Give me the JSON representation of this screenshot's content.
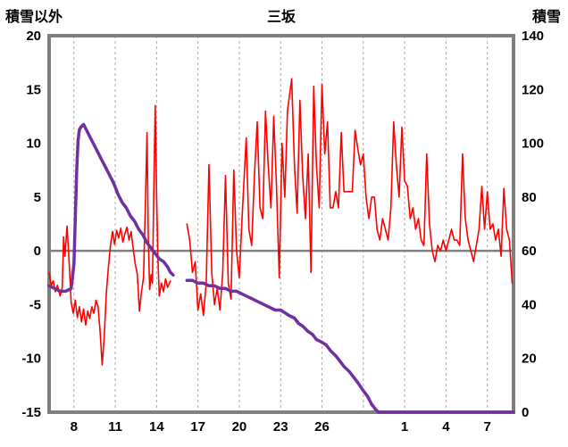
{
  "header": {
    "left_axis_title": "積雪以外",
    "title": "三坂",
    "right_axis_title": "積雪"
  },
  "chart_data": {
    "type": "line",
    "title": "三坂",
    "left_axis": {
      "title": "積雪以外",
      "min": -15,
      "max": 20,
      "ticks": [
        20,
        15,
        10,
        5,
        0,
        -5,
        -10,
        -15
      ]
    },
    "right_axis": {
      "title": "積雪",
      "min": 0,
      "max": 140,
      "ticks": [
        140,
        120,
        100,
        80,
        60,
        40,
        20,
        0
      ]
    },
    "x_domain": [
      6.2,
      39.9
    ],
    "x_ticks": [
      {
        "t": 8,
        "label": "8"
      },
      {
        "t": 11,
        "label": "11"
      },
      {
        "t": 14,
        "label": "14"
      },
      {
        "t": 17,
        "label": "17"
      },
      {
        "t": 20,
        "label": "20"
      },
      {
        "t": 23,
        "label": "23"
      },
      {
        "t": 26,
        "label": "26"
      },
      {
        "t": 29,
        "label": ""
      },
      {
        "t": 32,
        "label": "1"
      },
      {
        "t": 35,
        "label": "4"
      },
      {
        "t": 38,
        "label": "7"
      }
    ],
    "grid": {
      "color": "#ABABAB",
      "dash": "3 3"
    },
    "zero_line_color": "#808080",
    "frame_color": "#808080",
    "background": "#FFFFFF",
    "series": [
      {
        "id": "temperature",
        "name": "積雪以外",
        "axis": "left",
        "color": "#FF0000",
        "width": 1.6,
        "segments": [
          [
            [
              6.2,
              -2.0
            ],
            [
              6.35,
              -3.2
            ],
            [
              6.5,
              -2.8
            ],
            [
              6.65,
              -3.8
            ],
            [
              6.8,
              -3.2
            ],
            [
              7.0,
              -4.2
            ],
            [
              7.15,
              -3.4
            ],
            [
              7.25,
              1.3
            ],
            [
              7.35,
              -0.5
            ],
            [
              7.5,
              2.3
            ],
            [
              7.65,
              -1.0
            ],
            [
              7.8,
              -4.8
            ],
            [
              7.95,
              -5.8
            ],
            [
              8.1,
              -4.6
            ],
            [
              8.25,
              -6.2
            ],
            [
              8.4,
              -5.2
            ],
            [
              8.55,
              -6.6
            ],
            [
              8.7,
              -5.4
            ],
            [
              8.85,
              -6.9
            ],
            [
              9.0,
              -5.6
            ],
            [
              9.15,
              -6.3
            ],
            [
              9.3,
              -5.2
            ],
            [
              9.45,
              -5.8
            ],
            [
              9.6,
              -4.6
            ],
            [
              9.75,
              -5.2
            ],
            [
              9.9,
              -7.5
            ],
            [
              10.05,
              -10.6
            ],
            [
              10.2,
              -8.0
            ],
            [
              10.35,
              -4.0
            ],
            [
              10.5,
              -1.5
            ],
            [
              10.65,
              0.5
            ],
            [
              10.8,
              1.8
            ],
            [
              10.95,
              0.6
            ],
            [
              11.1,
              1.9
            ],
            [
              11.25,
              1.2
            ],
            [
              11.4,
              2.1
            ],
            [
              11.55,
              0.8
            ],
            [
              11.7,
              1.6
            ],
            [
              11.85,
              2.2
            ],
            [
              12.0,
              1.0
            ],
            [
              12.15,
              1.8
            ],
            [
              12.3,
              0.2
            ],
            [
              12.45,
              -1.2
            ],
            [
              12.6,
              -2.2
            ],
            [
              12.75,
              -5.6
            ],
            [
              12.9,
              -3.8
            ],
            [
              13.05,
              -2.5
            ],
            [
              13.2,
              5.0
            ],
            [
              13.3,
              11.0
            ],
            [
              13.4,
              1.0
            ],
            [
              13.5,
              -3.6
            ],
            [
              13.6,
              -2.2
            ],
            [
              13.7,
              -3.0
            ],
            [
              13.8,
              6.0
            ],
            [
              13.9,
              13.5
            ],
            [
              14.0,
              5.0
            ],
            [
              14.1,
              -1.0
            ],
            [
              14.2,
              -4.2
            ],
            [
              14.35,
              -3.0
            ],
            [
              14.5,
              -3.8
            ],
            [
              14.65,
              -2.6
            ],
            [
              14.8,
              -3.4
            ],
            [
              15.0,
              -2.8
            ]
          ],
          [
            [
              16.2,
              2.5
            ],
            [
              16.4,
              1.0
            ],
            [
              16.6,
              -2.0
            ],
            [
              16.8,
              -1.0
            ],
            [
              17.0,
              -5.5
            ],
            [
              17.2,
              -4.0
            ],
            [
              17.4,
              -6.0
            ],
            [
              17.6,
              -3.0
            ],
            [
              17.8,
              8.0
            ],
            [
              18.0,
              -2.0
            ],
            [
              18.2,
              -5.0
            ],
            [
              18.4,
              -3.5
            ],
            [
              18.6,
              -5.5
            ],
            [
              18.8,
              -2.0
            ],
            [
              19.0,
              7.0
            ],
            [
              19.2,
              -3.0
            ],
            [
              19.4,
              -4.5
            ],
            [
              19.6,
              7.5
            ],
            [
              19.8,
              0.0
            ],
            [
              20.0,
              -2.5
            ],
            [
              20.2,
              3.0
            ],
            [
              20.5,
              10.5
            ],
            [
              20.7,
              2.0
            ],
            [
              20.9,
              0.5
            ],
            [
              21.1,
              7.0
            ],
            [
              21.3,
              12.0
            ],
            [
              21.5,
              4.0
            ],
            [
              21.7,
              3.0
            ],
            [
              21.9,
              13.0
            ],
            [
              22.1,
              8.0
            ],
            [
              22.3,
              4.0
            ],
            [
              22.5,
              12.5
            ],
            [
              22.7,
              6.0
            ],
            [
              22.9,
              -2.5
            ],
            [
              23.1,
              10.0
            ],
            [
              23.3,
              5.0
            ],
            [
              23.5,
              13.0
            ],
            [
              23.8,
              16.0
            ],
            [
              24.0,
              8.0
            ],
            [
              24.2,
              3.5
            ],
            [
              24.4,
              14.0
            ],
            [
              24.6,
              7.0
            ],
            [
              24.8,
              3.0
            ],
            [
              25.0,
              9.0
            ],
            [
              25.2,
              -2.0
            ],
            [
              25.4,
              15.3
            ],
            [
              25.6,
              8.0
            ],
            [
              25.8,
              4.0
            ],
            [
              26.0,
              15.5
            ],
            [
              26.2,
              9.0
            ],
            [
              26.4,
              12.0
            ],
            [
              26.6,
              4.0
            ],
            [
              26.8,
              4.0
            ],
            [
              27.0,
              5.5
            ],
            [
              27.2,
              4.0
            ],
            [
              27.4,
              11.0
            ],
            [
              27.6,
              5.5
            ],
            [
              27.8,
              5.5
            ],
            [
              28.0,
              5.5
            ],
            [
              28.2,
              5.5
            ],
            [
              28.4,
              11.2
            ],
            [
              28.6,
              9.5
            ],
            [
              28.8,
              8.0
            ],
            [
              29.0,
              9.0
            ],
            [
              29.2,
              5.0
            ],
            [
              29.4,
              3.0
            ],
            [
              29.6,
              5.0
            ],
            [
              29.8,
              5.0
            ],
            [
              30.0,
              2.0
            ],
            [
              30.2,
              1.0
            ],
            [
              30.4,
              3.0
            ],
            [
              30.6,
              2.0
            ],
            [
              30.8,
              1.0
            ],
            [
              31.0,
              4.0
            ],
            [
              31.2,
              12.0
            ],
            [
              31.4,
              8.0
            ],
            [
              31.6,
              5.0
            ],
            [
              31.8,
              11.5
            ],
            [
              32.0,
              6.5
            ],
            [
              32.2,
              6.0
            ],
            [
              32.4,
              3.0
            ],
            [
              32.6,
              4.0
            ],
            [
              32.8,
              2.0
            ],
            [
              33.0,
              3.0
            ],
            [
              33.2,
              1.0
            ],
            [
              33.4,
              0.5
            ],
            [
              33.6,
              9.0
            ],
            [
              33.8,
              2.5
            ],
            [
              34.0,
              0.0
            ],
            [
              34.2,
              -1.0
            ],
            [
              34.4,
              0.5
            ],
            [
              34.6,
              0.0
            ],
            [
              34.8,
              1.0
            ],
            [
              35.0,
              0.0
            ],
            [
              35.2,
              1.0
            ],
            [
              35.4,
              2.0
            ],
            [
              35.6,
              1.0
            ],
            [
              35.8,
              1.0
            ],
            [
              36.0,
              0.5
            ],
            [
              36.2,
              9.0
            ],
            [
              36.4,
              3.0
            ],
            [
              36.6,
              1.0
            ],
            [
              36.8,
              0.0
            ],
            [
              37.0,
              -1.0
            ],
            [
              37.2,
              0.5
            ],
            [
              37.4,
              2.0
            ],
            [
              37.6,
              6.0
            ],
            [
              37.8,
              2.0
            ],
            [
              38.0,
              5.5
            ],
            [
              38.2,
              2.0
            ],
            [
              38.4,
              2.5
            ],
            [
              38.6,
              1.0
            ],
            [
              38.8,
              2.0
            ],
            [
              39.0,
              -0.5
            ],
            [
              39.2,
              5.8
            ],
            [
              39.4,
              2.0
            ],
            [
              39.6,
              1.0
            ],
            [
              39.8,
              -3.0
            ]
          ]
        ]
      },
      {
        "id": "snow-depth",
        "name": "積雪",
        "axis": "right",
        "color": "#7030A0",
        "width": 3.5,
        "segments": [
          [
            [
              6.2,
              47
            ],
            [
              6.6,
              46
            ],
            [
              7.0,
              45
            ],
            [
              7.4,
              45
            ],
            [
              7.8,
              46
            ],
            [
              8.0,
              55
            ],
            [
              8.1,
              72
            ],
            [
              8.2,
              90
            ],
            [
              8.3,
              101
            ],
            [
              8.4,
              105
            ],
            [
              8.5,
              106
            ],
            [
              8.7,
              107
            ],
            [
              8.9,
              105
            ],
            [
              9.1,
              103
            ],
            [
              9.4,
              100
            ],
            [
              9.7,
              97
            ],
            [
              10.0,
              94
            ],
            [
              10.3,
              91
            ],
            [
              10.6,
              88
            ],
            [
              10.9,
              85
            ],
            [
              11.2,
              81
            ],
            [
              11.5,
              78
            ],
            [
              11.8,
              76
            ],
            [
              12.1,
              73
            ],
            [
              12.4,
              71
            ],
            [
              12.7,
              68
            ],
            [
              13.0,
              66
            ],
            [
              13.3,
              63
            ],
            [
              13.6,
              61
            ],
            [
              13.9,
              59
            ],
            [
              14.2,
              57
            ],
            [
              14.5,
              56
            ],
            [
              14.8,
              54
            ],
            [
              15.0,
              52
            ],
            [
              15.2,
              51
            ]
          ],
          [
            [
              16.2,
              49
            ],
            [
              16.6,
              49
            ],
            [
              17.0,
              48
            ],
            [
              17.4,
              48
            ],
            [
              17.8,
              47
            ],
            [
              18.2,
              47
            ],
            [
              18.6,
              46
            ],
            [
              19.0,
              46
            ],
            [
              19.4,
              45
            ],
            [
              19.8,
              45
            ],
            [
              20.2,
              44
            ],
            [
              20.6,
              43
            ],
            [
              21.0,
              42
            ],
            [
              21.4,
              41
            ],
            [
              21.8,
              40
            ],
            [
              22.2,
              39
            ],
            [
              22.6,
              38
            ],
            [
              23.0,
              38
            ],
            [
              23.3,
              37
            ],
            [
              23.6,
              36
            ],
            [
              24.0,
              35
            ],
            [
              24.3,
              33
            ],
            [
              24.6,
              32
            ],
            [
              25.0,
              30
            ],
            [
              25.3,
              29
            ],
            [
              25.6,
              27
            ],
            [
              26.0,
              26
            ],
            [
              26.3,
              25
            ],
            [
              26.6,
              23
            ],
            [
              27.0,
              21
            ],
            [
              27.3,
              19
            ],
            [
              27.6,
              17
            ],
            [
              28.0,
              15
            ],
            [
              28.3,
              13
            ],
            [
              28.6,
              11
            ],
            [
              29.0,
              8
            ],
            [
              29.3,
              6
            ],
            [
              29.6,
              3
            ],
            [
              29.9,
              1
            ],
            [
              30.1,
              0
            ],
            [
              39.9,
              0
            ]
          ]
        ]
      }
    ]
  }
}
